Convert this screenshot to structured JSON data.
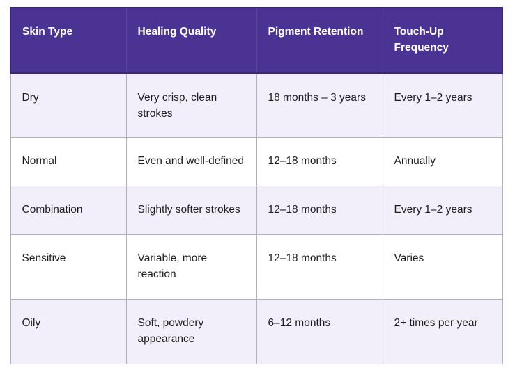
{
  "colors": {
    "header_bg": "#4a3392",
    "header_border": "#3a276f",
    "header_text": "#ffffff",
    "row_alt_bg": "#f2effa",
    "row_bg": "#ffffff",
    "cell_border": "#b3afbc",
    "body_text": "#1d1d1f"
  },
  "table": {
    "columns": [
      "Skin Type",
      "Healing Quality",
      "Pigment Retention",
      "Touch-Up Frequency"
    ],
    "rows": [
      {
        "cells": [
          "Dry",
          "Very crisp, clean strokes",
          "18 months – 3 years",
          "Every 1–2 years"
        ]
      },
      {
        "cells": [
          "Normal",
          "Even and well-defined",
          "12–18 months",
          "Annually"
        ]
      },
      {
        "cells": [
          "Combination",
          "Slightly softer strokes",
          "12–18 months",
          "Every 1–2 years"
        ]
      },
      {
        "cells": [
          "Sensitive",
          "Variable, more reaction",
          "12–18 months",
          "Varies"
        ]
      },
      {
        "cells": [
          "Oily",
          "Soft, powdery appearance",
          "6–12 months",
          "2+ times per year"
        ]
      }
    ]
  },
  "chart_data": {
    "type": "table",
    "title": "",
    "columns": [
      "Skin Type",
      "Healing Quality",
      "Pigment Retention",
      "Touch-Up Frequency"
    ],
    "rows": [
      [
        "Dry",
        "Very crisp, clean strokes",
        "18 months – 3 years",
        "Every 1–2 years"
      ],
      [
        "Normal",
        "Even and well-defined",
        "12–18 months",
        "Annually"
      ],
      [
        "Combination",
        "Slightly softer strokes",
        "12–18 months",
        "Every 1–2 years"
      ],
      [
        "Sensitive",
        "Variable, more reaction",
        "12–18 months",
        "Varies"
      ],
      [
        "Oily",
        "Soft, powdery appearance",
        "6–12 months",
        "2+ times per year"
      ]
    ]
  }
}
